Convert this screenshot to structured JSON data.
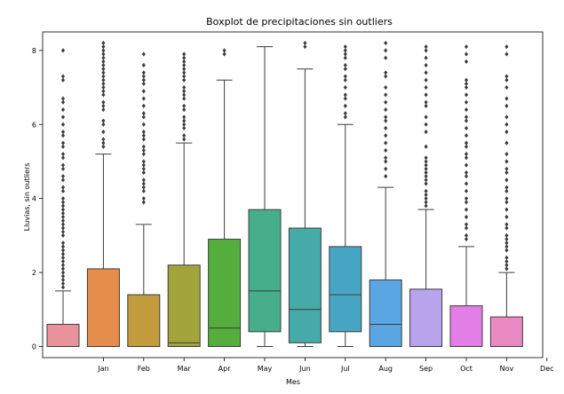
{
  "chart_data": {
    "type": "box",
    "title": "Boxplot de precipitaciones sin outliers",
    "xlabel": "Mes",
    "ylabel": "Lluvias, sin outliers",
    "ylim": [
      -0.3,
      8.5
    ],
    "yticks": [
      0,
      2,
      4,
      6,
      8
    ],
    "tick_labels": [
      "Jan",
      "Feb",
      "Mar",
      "Apr",
      "May",
      "Jun",
      "Jul",
      "Aug",
      "Sep",
      "Oct",
      "Nov",
      "Dec"
    ],
    "boxes": [
      {
        "color": "#e8929b",
        "min": 0,
        "q1": 0,
        "median": 0,
        "q3": 0.6,
        "max": 1.5,
        "fliers": [
          1.6,
          1.7,
          1.8,
          1.9,
          2.0,
          2.1,
          2.2,
          2.3,
          2.4,
          2.5,
          2.6,
          2.7,
          2.8,
          3.0,
          3.1,
          3.2,
          3.3,
          3.4,
          3.5,
          3.6,
          3.7,
          3.8,
          3.9,
          4.0,
          4.2,
          4.3,
          4.5,
          4.6,
          4.8,
          4.9,
          5.1,
          5.2,
          5.4,
          5.5,
          5.7,
          5.8,
          6.0,
          6.2,
          6.4,
          6.6,
          6.7,
          7.2,
          7.3,
          8.0
        ]
      },
      {
        "color": "#e58d4a",
        "min": 0,
        "q1": 0,
        "median": 0,
        "q3": 2.1,
        "max": 5.2,
        "fliers": [
          5.4,
          5.5,
          5.6,
          5.8,
          6.0,
          6.1,
          6.4,
          6.5,
          6.6,
          6.8,
          6.9,
          7.0,
          7.1,
          7.2,
          7.3,
          7.4,
          7.5,
          7.6,
          7.7,
          7.8,
          7.9,
          8.0,
          8.1,
          8.2
        ]
      },
      {
        "color": "#c19b3c",
        "min": 0,
        "q1": 0,
        "median": 0,
        "q3": 1.4,
        "max": 3.3,
        "fliers": [
          3.9,
          4.0,
          4.2,
          4.3,
          4.4,
          4.5,
          4.7,
          4.8,
          4.9,
          5.0,
          5.2,
          5.3,
          5.4,
          5.6,
          5.7,
          5.8,
          6.0,
          6.2,
          6.3,
          6.5,
          6.7,
          6.9,
          7.1,
          7.2,
          7.3,
          7.4,
          7.6,
          7.9
        ]
      },
      {
        "color": "#a2a43c",
        "min": 0,
        "q1": 0,
        "median": 0.1,
        "q3": 2.2,
        "max": 5.5,
        "fliers": [
          5.6,
          5.7,
          5.9,
          6.0,
          6.1,
          6.2,
          6.4,
          6.5,
          6.7,
          6.8,
          6.9,
          7.0,
          7.2,
          7.3,
          7.4,
          7.5,
          7.6,
          7.7,
          7.8,
          7.9
        ]
      },
      {
        "color": "#55ad3e",
        "min": 0,
        "q1": 0,
        "median": 0.5,
        "q3": 2.9,
        "max": 7.2,
        "fliers": [
          7.9,
          8.0
        ]
      },
      {
        "color": "#46ae8b",
        "min": 0,
        "q1": 0.4,
        "median": 1.5,
        "q3": 3.7,
        "max": 8.1,
        "fliers": []
      },
      {
        "color": "#45aaa8",
        "min": 0,
        "q1": 0.1,
        "median": 1.0,
        "q3": 3.2,
        "max": 7.5,
        "fliers": [
          8.1,
          8.2
        ]
      },
      {
        "color": "#46a6c4",
        "min": 0,
        "q1": 0.4,
        "median": 1.4,
        "q3": 2.7,
        "max": 6.0,
        "fliers": [
          6.2,
          6.3,
          6.5,
          6.7,
          6.8,
          7.0,
          7.2,
          7.3,
          7.5,
          7.6,
          7.8,
          7.9,
          8.0,
          8.1
        ]
      },
      {
        "color": "#5aa6e3",
        "min": 0,
        "q1": 0,
        "median": 0.6,
        "q3": 1.8,
        "max": 4.3,
        "fliers": [
          4.6,
          4.8,
          5.0,
          5.1,
          5.3,
          5.5,
          5.7,
          5.9,
          6.1,
          6.2,
          6.4,
          6.6,
          6.8,
          7.0,
          7.3,
          7.4,
          7.8,
          8.0,
          8.2
        ]
      },
      {
        "color": "#b7a4ec",
        "min": 0,
        "q1": 0,
        "median": 0,
        "q3": 1.55,
        "max": 3.7,
        "fliers": [
          3.8,
          3.9,
          4.0,
          4.1,
          4.2,
          4.4,
          4.5,
          4.6,
          4.7,
          4.8,
          4.9,
          5.0,
          5.1,
          5.4,
          5.8,
          6.0,
          6.2,
          6.5,
          6.6,
          6.8,
          7.0,
          7.2,
          7.4,
          7.6,
          7.8,
          8.0,
          8.1
        ]
      },
      {
        "color": "#e27ee6",
        "min": 0,
        "q1": 0,
        "median": 0,
        "q3": 1.1,
        "max": 2.7,
        "fliers": [
          2.9,
          3.0,
          3.2,
          3.3,
          3.5,
          3.7,
          3.9,
          4.0,
          4.2,
          4.4,
          4.6,
          4.7,
          4.9,
          5.1,
          5.2,
          5.4,
          5.5,
          5.7,
          5.9,
          6.1,
          6.2,
          6.4,
          6.6,
          6.8,
          7.0,
          7.1,
          7.2,
          7.7,
          7.9,
          8.1
        ]
      },
      {
        "color": "#e98bc2",
        "min": 0,
        "q1": 0,
        "median": 0,
        "q3": 0.8,
        "max": 2.0,
        "fliers": [
          2.1,
          2.2,
          2.3,
          2.4,
          2.6,
          2.7,
          2.8,
          2.9,
          3.0,
          3.2,
          3.3,
          3.5,
          3.7,
          3.9,
          4.0,
          4.2,
          4.3,
          4.5,
          4.7,
          4.8,
          5.0,
          5.2,
          5.5,
          5.8,
          6.0,
          6.2,
          6.5,
          6.7,
          7.0,
          7.2,
          7.3,
          7.9,
          8.1
        ]
      }
    ]
  }
}
